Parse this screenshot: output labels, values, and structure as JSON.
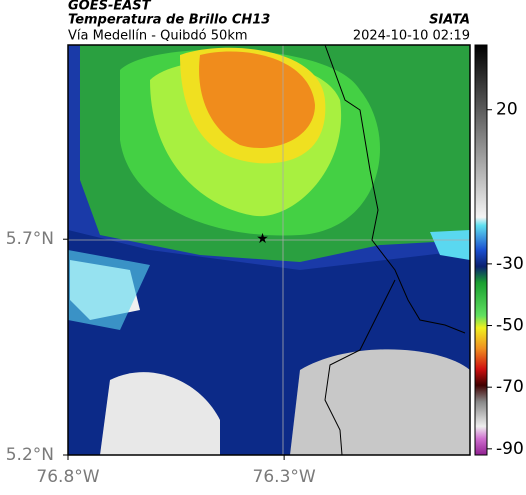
{
  "chart_data": {
    "type": "map",
    "title": "GOES-EAST",
    "subtitle": "Temperatura de Brillo CH13",
    "source": "SIATA",
    "region": "Vía Medellín - Quibdó 50km",
    "timestamp": "2024-10-10 02:19",
    "xlim": [
      -76.8,
      -75.87
    ],
    "ylim": [
      5.2,
      6.15
    ],
    "xticks": [
      {
        "value": -76.8,
        "label": "76.8°W"
      },
      {
        "value": -76.3,
        "label": "76.3°W"
      }
    ],
    "yticks": [
      {
        "value": 5.2,
        "label": "5.2°N"
      },
      {
        "value": 5.7,
        "label": "5.7°N"
      }
    ],
    "grid": true,
    "station": {
      "lon": -76.35,
      "lat": 5.7
    },
    "colorbar": {
      "lim": [
        -92,
        41
      ],
      "ticks": [
        20,
        -30,
        -50,
        -70,
        -90
      ]
    }
  }
}
